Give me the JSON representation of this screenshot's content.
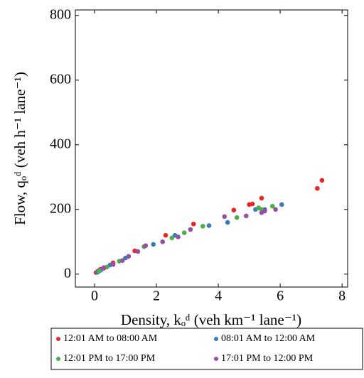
{
  "chart_data": {
    "type": "scatter",
    "x_label": "Density, kₒᵈ (veh km⁻¹ lane⁻¹)",
    "y_label": "Flow, qₒᵈ (veh h⁻¹ lane⁻¹)",
    "xlim": [
      -0.62,
      8.18
    ],
    "ylim": [
      -40,
      817
    ],
    "xticks": [
      0,
      2,
      4,
      6,
      8
    ],
    "yticks": [
      0,
      200,
      400,
      600,
      800
    ],
    "legend_position": "below",
    "series": [
      {
        "name": "12:01 AM to 08:00 AM",
        "color": "#e8262a",
        "x": [
          0.05,
          0.1,
          0.12,
          0.15,
          0.2,
          0.3,
          0.6,
          1.3,
          2.3,
          3.2,
          4.5,
          5.0,
          5.1,
          5.4,
          7.2,
          7.35
        ],
        "values": [
          5,
          8,
          10,
          12,
          15,
          20,
          35,
          72,
          120,
          155,
          198,
          215,
          217,
          235,
          265,
          290
        ]
      },
      {
        "name": "08:01 AM to 12:00 AM",
        "color": "#377eb8",
        "x": [
          0.1,
          0.2,
          0.5,
          1.0,
          1.9,
          2.6,
          3.7,
          4.3,
          5.2,
          5.5,
          6.05
        ],
        "values": [
          6,
          12,
          28,
          50,
          92,
          120,
          150,
          160,
          200,
          200,
          215
        ]
      },
      {
        "name": "12:01 PM to 17:00 PM",
        "color": "#4daf4a",
        "x": [
          0.15,
          0.4,
          0.8,
          1.6,
          2.5,
          2.9,
          3.5,
          4.6,
          5.3,
          5.4,
          5.75
        ],
        "values": [
          10,
          22,
          40,
          85,
          112,
          128,
          148,
          175,
          205,
          200,
          210
        ]
      },
      {
        "name": "17:01 PM to 12:00 PM",
        "color": "#984ea3",
        "x": [
          0.3,
          0.6,
          0.9,
          1.1,
          1.4,
          1.65,
          2.2,
          2.7,
          3.1,
          4.2,
          4.9,
          5.4,
          5.5,
          5.85
        ],
        "values": [
          18,
          30,
          42,
          55,
          70,
          88,
          100,
          115,
          138,
          178,
          180,
          190,
          195,
          200
        ]
      }
    ]
  }
}
